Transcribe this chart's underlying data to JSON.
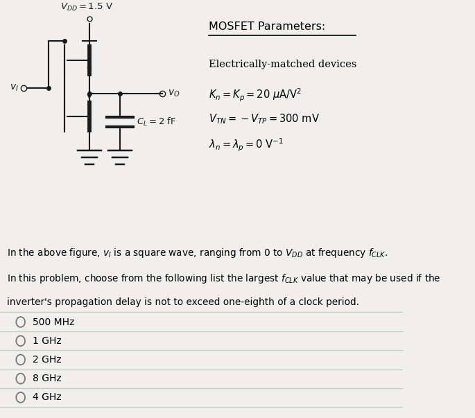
{
  "bg_color": "#f0efed",
  "circuit_color": "#1a1a1a",
  "choices": [
    "500 MHz",
    "1 GHz",
    "2 GHz",
    "8 GHz",
    "4 GHz"
  ],
  "separator_color": "#c8c8c8",
  "text_color": "#111111"
}
